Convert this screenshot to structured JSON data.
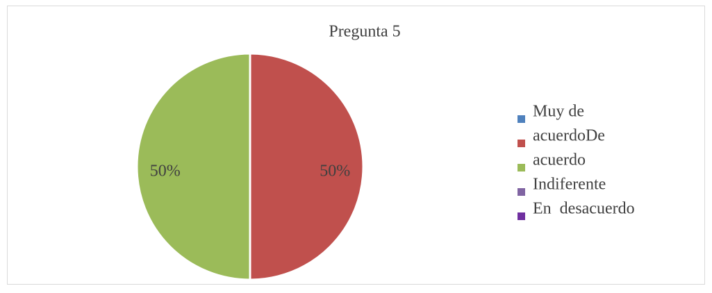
{
  "chart_data": {
    "type": "pie",
    "title": "Pregunta 5",
    "categories": [
      "Muy de",
      "acuerdoDe",
      "acuerdo",
      "Indiferente",
      "En  desacuerdo"
    ],
    "values": [
      0,
      50,
      50,
      0,
      0
    ],
    "value_labels": [
      null,
      "50%",
      "50%",
      null,
      null
    ],
    "colors": [
      "#4f81bd",
      "#c0504d",
      "#9bbb59",
      "#8064a2",
      "#7030a0"
    ],
    "legend": "right"
  }
}
